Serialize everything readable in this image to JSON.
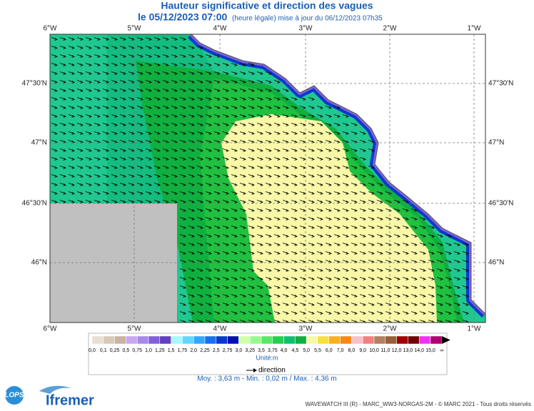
{
  "header": {
    "title": "Hauteur significative et direction des vagues",
    "date": "le 05/12/2023 07:00",
    "update": "(heure légale) mise à jour du 06/12/2023 07h35"
  },
  "map": {
    "lon_labels": [
      "6°W",
      "5°W",
      "4°W",
      "3°W",
      "2°W",
      "1°W"
    ],
    "lat_labels": [
      "47°30'N",
      "47°N",
      "46°30'N",
      "46°N"
    ]
  },
  "legend": {
    "labels": [
      "0,0",
      "0,1",
      "0,25",
      "0,5",
      "0,75",
      "1,0",
      "1,25",
      "1,5",
      "1,75",
      "2,0",
      "2,25",
      "2,5",
      "2,75",
      "3,0",
      "3,25",
      "3,5",
      "3,75",
      "4,0",
      "4,5",
      "5,0",
      "5,5",
      "6,0",
      "7,0",
      "8,0",
      "9,0",
      "10,0",
      "11,0",
      "12,0",
      "13,0",
      "14,0",
      "15,0",
      "∞"
    ],
    "colors": [
      "#eadfd3",
      "#d9c9b8",
      "#c9b3a3",
      "#c8a8f0",
      "#a888e8",
      "#8060d8",
      "#6040c0",
      "#a8f8ff",
      "#60d8ff",
      "#30a8ff",
      "#1870f0",
      "#0838d0",
      "#0010b0",
      "#d0ffa8",
      "#98f890",
      "#58e868",
      "#20d050",
      "#10c070",
      "#10b040",
      "#f8f8a8",
      "#f8e040",
      "#f8b020",
      "#f88818",
      "#f8c0c8",
      "#f08080",
      "#b08060",
      "#986038",
      "#a00000",
      "#700000",
      "#f030f0",
      "#b00070"
    ],
    "unit": "Unité:m",
    "direction": "direction"
  },
  "stats": "Moy. : 3,63 m  -  Min. : 0,02 m / Max. : 4,36 m",
  "footer": {
    "credit": "WAVEWATCH III (R) - MARC_WW3-NORGAS-2M - © MARC 2021 - Tous droits réservés",
    "lops": "LOPS",
    "ifremer": "Ifremer"
  }
}
